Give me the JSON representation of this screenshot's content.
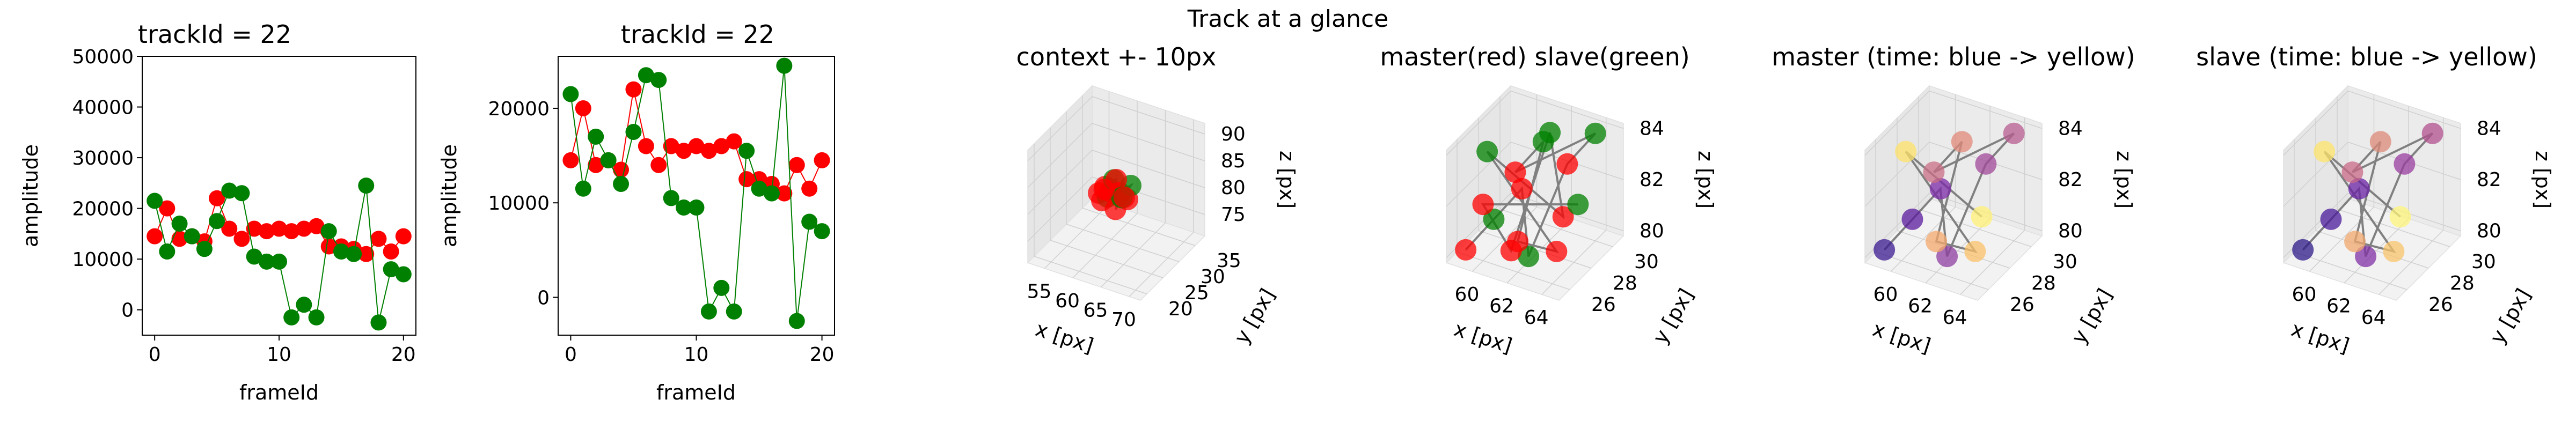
{
  "suptitle": "Track at a glance",
  "colors": {
    "red": "#ff0000",
    "green": "#008000",
    "line_gray": "#808080",
    "pane": "#f2f2f2",
    "grid": "#d6d6d6"
  },
  "chart_data": [
    {
      "type": "line",
      "title": "trackId = 22",
      "xlabel": "frameId",
      "ylabel": "amplitude",
      "xlim": [
        -1,
        21
      ],
      "ylim": [
        -5000,
        50000
      ],
      "xticks": [
        0,
        10,
        20
      ],
      "xtick_labels": [
        "0",
        "10",
        "20"
      ],
      "yticks": [
        0,
        10000,
        20000,
        30000,
        40000,
        50000
      ],
      "ytick_labels": [
        "0",
        "10000",
        "20000",
        "30000",
        "40000",
        "50000"
      ],
      "x": [
        0,
        1,
        2,
        3,
        4,
        5,
        6,
        7,
        8,
        9,
        10,
        11,
        12,
        13,
        14,
        15,
        16,
        17,
        18,
        19,
        20
      ],
      "series": [
        {
          "color": "#ff0000",
          "values": [
            14500,
            20000,
            14000,
            14500,
            13500,
            22000,
            16000,
            14000,
            16000,
            15500,
            16000,
            15500,
            16000,
            16500,
            12500,
            12500,
            12000,
            11000,
            14000,
            11500,
            14500
          ]
        },
        {
          "color": "#008000",
          "values": [
            21500,
            11500,
            17000,
            14500,
            12000,
            17500,
            23500,
            23000,
            10500,
            9500,
            9500,
            -1500,
            1000,
            -1500,
            15500,
            11500,
            11000,
            24500,
            -2500,
            8000,
            7000
          ]
        }
      ]
    },
    {
      "type": "line",
      "title": "trackId = 22",
      "xlabel": "frameId",
      "ylabel": "amplitude",
      "xlim": [
        -1,
        21
      ],
      "ylim": [
        -4000,
        25500
      ],
      "xticks": [
        0,
        10,
        20
      ],
      "xtick_labels": [
        "0",
        "10",
        "20"
      ],
      "yticks": [
        0,
        10000,
        20000
      ],
      "ytick_labels": [
        "0",
        "10000",
        "20000"
      ],
      "x": [
        0,
        1,
        2,
        3,
        4,
        5,
        6,
        7,
        8,
        9,
        10,
        11,
        12,
        13,
        14,
        15,
        16,
        17,
        18,
        19,
        20
      ],
      "series": [
        {
          "color": "#ff0000",
          "values": [
            14500,
            20000,
            14000,
            14500,
            13500,
            22000,
            16000,
            14000,
            16000,
            15500,
            16000,
            15500,
            16000,
            16500,
            12500,
            12500,
            12000,
            11000,
            14000,
            11500,
            14500
          ]
        },
        {
          "color": "#008000",
          "values": [
            21500,
            11500,
            17000,
            14500,
            12000,
            17500,
            23500,
            23000,
            10500,
            9500,
            9500,
            -1500,
            1000,
            -1500,
            15500,
            11500,
            11000,
            24500,
            -2500,
            8000,
            7000
          ]
        }
      ]
    },
    {
      "type": "scatter3d",
      "title": "context +- 10px",
      "xlabel": "x [px]",
      "ylabel": "y [px]",
      "zlabel": "z [px]",
      "xlim": [
        52,
        72
      ],
      "ylim": [
        18,
        38
      ],
      "zlim": [
        71,
        92
      ],
      "xtick_labels": [
        "55",
        "60",
        "65",
        "70"
      ],
      "xticks": [
        55,
        60,
        65,
        70
      ],
      "ytick_labels": [
        "20",
        "25",
        "30",
        "35"
      ],
      "yticks": [
        20,
        25,
        30,
        35
      ],
      "ztick_labels": [
        "75",
        "80",
        "85",
        "90"
      ],
      "zticks": [
        75,
        80,
        85,
        90
      ],
      "points": [
        [
          60,
          26,
          82
        ],
        [
          61,
          27,
          81
        ],
        [
          62,
          26,
          83
        ],
        [
          63,
          27,
          82
        ],
        [
          64,
          28,
          81
        ],
        [
          60,
          28,
          82
        ],
        [
          61,
          29,
          83
        ],
        [
          62,
          29,
          81
        ],
        [
          63,
          26,
          80
        ],
        [
          64,
          29,
          83
        ],
        [
          60,
          27,
          80
        ],
        [
          62,
          28,
          84
        ],
        [
          63,
          28,
          81
        ],
        [
          61,
          26,
          83
        ],
        [
          64,
          27,
          82
        ]
      ],
      "colors": [
        "#ff0000",
        "#008000",
        "#ff0000",
        "#008000",
        "#ff0000",
        "#ff0000",
        "#008000",
        "#ff0000",
        "#ff0000",
        "#008000",
        "#ff0000",
        "#ff0000",
        "#008000",
        "#ff0000",
        "#ff0000"
      ]
    },
    {
      "type": "scatter3d",
      "title": "master(red) slave(green)",
      "xlabel": "x [px]",
      "ylabel": "y [px]",
      "zlabel": "z [px]",
      "xlim": [
        58.5,
        65
      ],
      "ylim": [
        25,
        31
      ],
      "zlim": [
        79.8,
        84.2
      ],
      "xtick_labels": [
        "60",
        "62",
        "64"
      ],
      "xticks": [
        60,
        62,
        64
      ],
      "ytick_labels": [
        "26",
        "28",
        "30"
      ],
      "yticks": [
        26,
        28,
        30
      ],
      "ztick_labels": [
        "80",
        "82",
        "84"
      ],
      "zticks": [
        80,
        82,
        84
      ],
      "points": [
        [
          59,
          26,
          80
        ],
        [
          60,
          27,
          81
        ],
        [
          61,
          28,
          82
        ],
        [
          62,
          27,
          80
        ],
        [
          63,
          29,
          83
        ],
        [
          64,
          30,
          84
        ],
        [
          60,
          29,
          82
        ],
        [
          61,
          30,
          83
        ],
        [
          62,
          26,
          81
        ],
        [
          63,
          28,
          80
        ],
        [
          59,
          28,
          83
        ],
        [
          64,
          27,
          82
        ],
        [
          62,
          29,
          84
        ],
        [
          61,
          27,
          80
        ],
        [
          60,
          26,
          82
        ],
        [
          63,
          30,
          81
        ]
      ],
      "colors": [
        "#ff0000",
        "#008000",
        "#ff0000",
        "#008000",
        "#ff0000",
        "#008000",
        "#ff0000",
        "#008000",
        "#ff0000",
        "#ff0000",
        "#008000",
        "#ff0000",
        "#008000",
        "#ff0000",
        "#ff0000",
        "#008000"
      ]
    },
    {
      "type": "scatter3d",
      "title": "master (time: blue -> yellow)",
      "xlabel": "x [px]",
      "ylabel": "y [px]",
      "zlabel": "z [px]",
      "xlim": [
        58.5,
        65
      ],
      "ylim": [
        25,
        31
      ],
      "zlim": [
        79.8,
        84.2
      ],
      "xtick_labels": [
        "60",
        "62",
        "64"
      ],
      "xticks": [
        60,
        62,
        64
      ],
      "ytick_labels": [
        "26",
        "28",
        "30"
      ],
      "yticks": [
        26,
        28,
        30
      ],
      "ztick_labels": [
        "80",
        "82",
        "84"
      ],
      "zticks": [
        80,
        82,
        84
      ],
      "points": [
        [
          59,
          26,
          80
        ],
        [
          60,
          27,
          81
        ],
        [
          61,
          28,
          82
        ],
        [
          62,
          27,
          80
        ],
        [
          63,
          29,
          83
        ],
        [
          64,
          30,
          84
        ],
        [
          60,
          29,
          82
        ],
        [
          61,
          30,
          83
        ],
        [
          62,
          26,
          81
        ],
        [
          63,
          28,
          80
        ],
        [
          59,
          28,
          83
        ],
        [
          64,
          27,
          82
        ]
      ],
      "colors": [
        "#3b1a8f",
        "#5a1a9e",
        "#7b2aa8",
        "#8e3fa0",
        "#a04a9a",
        "#b85c90",
        "#c96f85",
        "#e08a78",
        "#f4a86c",
        "#fbc26a",
        "#fde16a",
        "#fff176"
      ]
    },
    {
      "type": "scatter3d",
      "title": "slave (time: blue -> yellow)",
      "xlabel": "x [px]",
      "ylabel": "y [px]",
      "zlabel": "z [px]",
      "xlim": [
        58.5,
        65
      ],
      "ylim": [
        25,
        31
      ],
      "zlim": [
        79.8,
        84.2
      ],
      "xtick_labels": [
        "60",
        "62",
        "64"
      ],
      "xticks": [
        60,
        62,
        64
      ],
      "ytick_labels": [
        "26",
        "28",
        "30"
      ],
      "yticks": [
        26,
        28,
        30
      ],
      "ztick_labels": [
        "80",
        "82",
        "84"
      ],
      "zticks": [
        80,
        82,
        84
      ],
      "points": [
        [
          59,
          26,
          80
        ],
        [
          60,
          27,
          81
        ],
        [
          61,
          28,
          82
        ],
        [
          62,
          27,
          80
        ],
        [
          63,
          29,
          83
        ],
        [
          64,
          30,
          84
        ],
        [
          60,
          29,
          82
        ],
        [
          61,
          30,
          83
        ],
        [
          62,
          26,
          81
        ],
        [
          63,
          28,
          80
        ],
        [
          59,
          28,
          83
        ],
        [
          64,
          27,
          82
        ]
      ],
      "colors": [
        "#2d1a8a",
        "#4a1a9a",
        "#6a22a6",
        "#8030a6",
        "#9a3ea0",
        "#b2508f",
        "#c86a86",
        "#de8a7a",
        "#f2a86e",
        "#f9c46c",
        "#fde36a",
        "#fff47a"
      ]
    }
  ]
}
